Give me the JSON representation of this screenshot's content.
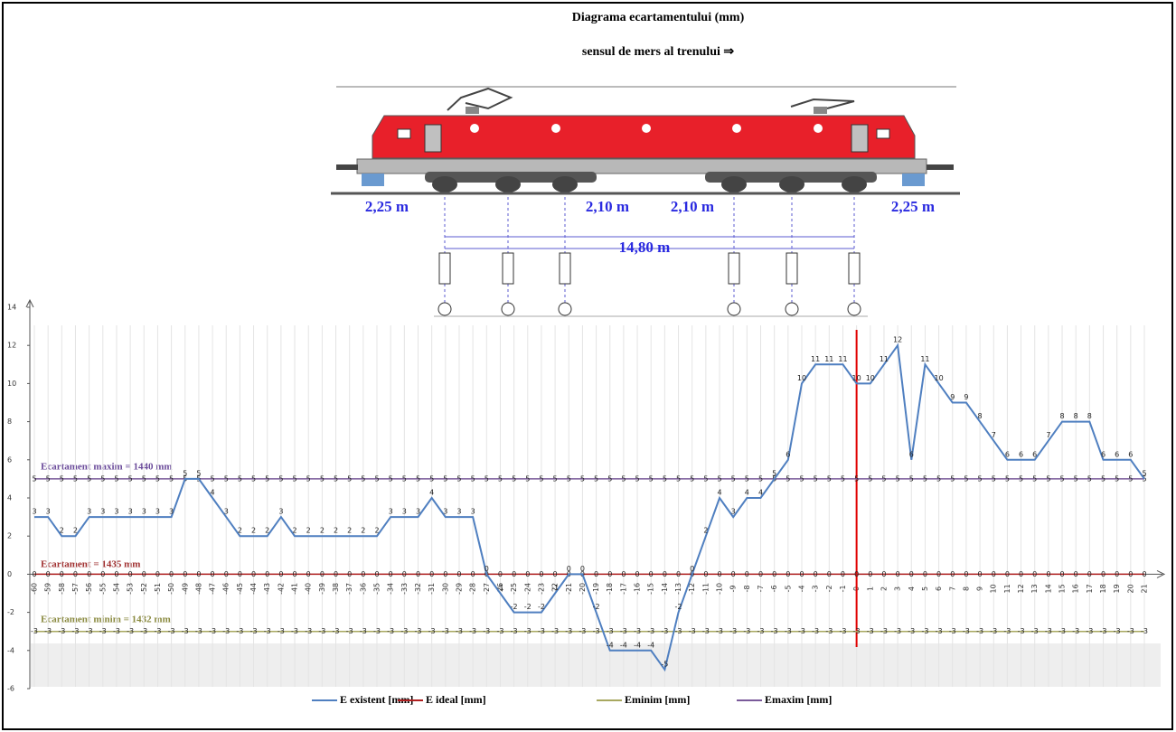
{
  "chart_data": {
    "type": "line",
    "title": "Diagrama ecartamentului (mm)",
    "subtitle": "sensul de mers al trenului ⇒",
    "diagram_labels": [
      "2,25 m",
      "2,10 m",
      "2,10 m",
      "2,25 m",
      "14,80 m"
    ],
    "annotations": [
      "Ecartament maxim = 1440 mm",
      "Ecartament = 1435 mm",
      "Ecartament minim = 1432 mm"
    ],
    "x": [
      -60,
      -59,
      -58,
      -57,
      -56,
      -55,
      -54,
      -53,
      -52,
      -51,
      -50,
      -49,
      -48,
      -47,
      -46,
      -45,
      -44,
      -43,
      -42,
      -41,
      -40,
      -39,
      -38,
      -37,
      -36,
      -35,
      -34,
      -33,
      -32,
      -31,
      -30,
      -29,
      -28,
      -27,
      -26,
      -25,
      -24,
      -23,
      -22,
      -21,
      -20,
      -19,
      -18,
      -17,
      -16,
      -15,
      -14,
      -13,
      -12,
      -11,
      -10,
      -9,
      -8,
      -7,
      -6,
      -5,
      -4,
      -3,
      -2,
      -1,
      0,
      1,
      2,
      3,
      4,
      5,
      6,
      7,
      8,
      9,
      10,
      11,
      12,
      13,
      14,
      15,
      16,
      17,
      18,
      19,
      20,
      21
    ],
    "xlim": [
      -60,
      21
    ],
    "ylim": [
      -6,
      14
    ],
    "yticks": [
      -6,
      -4,
      -2,
      0,
      2,
      4,
      6,
      8,
      10,
      12,
      14
    ],
    "grid": true,
    "marker_line": 0,
    "series": [
      {
        "name": "E existent [mm]",
        "color": "#4f7fc0",
        "values": [
          3,
          3,
          2,
          2,
          3,
          3,
          3,
          3,
          3,
          3,
          3,
          5,
          5,
          4,
          3,
          2,
          2,
          2,
          3,
          2,
          2,
          2,
          2,
          2,
          2,
          2,
          3,
          3,
          3,
          4,
          3,
          3,
          3,
          0,
          -1,
          -2,
          -2,
          -2,
          -1,
          0,
          0,
          -2,
          -4,
          -4,
          -4,
          -4,
          -5,
          -2,
          0,
          2,
          4,
          3,
          4,
          4,
          5,
          6,
          10,
          11,
          11,
          11,
          10,
          10,
          11,
          12,
          6,
          11,
          10,
          9,
          9,
          8,
          7,
          6,
          6,
          6,
          7,
          8,
          8,
          8,
          6,
          6,
          6,
          5
        ]
      },
      {
        "name": "E ideal [mm]",
        "color": "#b02020",
        "values": [
          0,
          0,
          0,
          0,
          0,
          0,
          0,
          0,
          0,
          0,
          0,
          0,
          0,
          0,
          0,
          0,
          0,
          0,
          0,
          0,
          0,
          0,
          0,
          0,
          0,
          0,
          0,
          0,
          0,
          0,
          0,
          0,
          0,
          0,
          0,
          0,
          0,
          0,
          0,
          0,
          0,
          0,
          0,
          0,
          0,
          0,
          0,
          0,
          0,
          0,
          0,
          0,
          0,
          0,
          0,
          0,
          0,
          0,
          0,
          0,
          0,
          0,
          0,
          0,
          0,
          0,
          0,
          0,
          0,
          0,
          0,
          0,
          0,
          0,
          0,
          0,
          0,
          0,
          0,
          0,
          0,
          0
        ]
      },
      {
        "name": "Eminim [mm]",
        "color": "#a8a860",
        "values": [
          -3,
          -3,
          -3,
          -3,
          -3,
          -3,
          -3,
          -3,
          -3,
          -3,
          -3,
          -3,
          -3,
          -3,
          -3,
          -3,
          -3,
          -3,
          -3,
          -3,
          -3,
          -3,
          -3,
          -3,
          -3,
          -3,
          -3,
          -3,
          -3,
          -3,
          -3,
          -3,
          -3,
          -3,
          -3,
          -3,
          -3,
          -3,
          -3,
          -3,
          -3,
          -3,
          -3,
          -3,
          -3,
          -3,
          -3,
          -3,
          -3,
          -3,
          -3,
          -3,
          -3,
          -3,
          -3,
          -3,
          -3,
          -3,
          -3,
          -3,
          -3,
          -3,
          -3,
          -3,
          -3,
          -3,
          -3,
          -3,
          -3,
          -3,
          -3,
          -3,
          -3,
          -3,
          -3,
          -3,
          -3,
          -3,
          -3,
          -3,
          -3,
          -3
        ]
      },
      {
        "name": "Emaxim [mm]",
        "color": "#7a5a9a",
        "values": [
          5,
          5,
          5,
          5,
          5,
          5,
          5,
          5,
          5,
          5,
          5,
          5,
          5,
          5,
          5,
          5,
          5,
          5,
          5,
          5,
          5,
          5,
          5,
          5,
          5,
          5,
          5,
          5,
          5,
          5,
          5,
          5,
          5,
          5,
          5,
          5,
          5,
          5,
          5,
          5,
          5,
          5,
          5,
          5,
          5,
          5,
          5,
          5,
          5,
          5,
          5,
          5,
          5,
          5,
          5,
          5,
          5,
          5,
          5,
          5,
          5,
          5,
          5,
          5,
          5,
          5,
          5,
          5,
          5,
          5,
          5,
          5,
          5,
          5,
          5,
          5,
          5,
          5,
          5,
          5,
          5,
          5
        ]
      }
    ]
  }
}
